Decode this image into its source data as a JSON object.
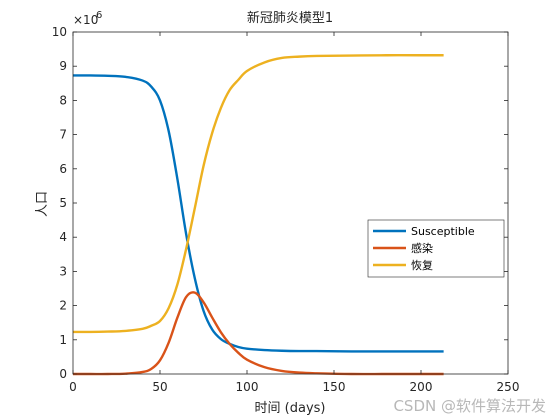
{
  "chart_data": {
    "type": "line",
    "title": "新冠肺炎模型1",
    "xlabel": "时间 (days)",
    "ylabel": "人口",
    "exponent_base": "×10",
    "exponent_power": "6",
    "xlim": [
      0,
      250
    ],
    "ylim": [
      0,
      10
    ],
    "xticks": [
      "0",
      "50",
      "100",
      "150",
      "200",
      "250"
    ],
    "yticks": [
      "0",
      "1",
      "2",
      "3",
      "4",
      "5",
      "6",
      "7",
      "8",
      "9",
      "10"
    ],
    "x": [
      0,
      10,
      20,
      30,
      40,
      45,
      50,
      55,
      60,
      65,
      70,
      75,
      80,
      85,
      90,
      95,
      100,
      110,
      120,
      130,
      140,
      160,
      180,
      200,
      213
    ],
    "series": [
      {
        "name": "Susceptible",
        "color": "#0072BD",
        "values": [
          8.73,
          8.73,
          8.72,
          8.69,
          8.58,
          8.4,
          8.0,
          7.1,
          5.7,
          4.1,
          2.8,
          1.85,
          1.3,
          1.02,
          0.88,
          0.79,
          0.74,
          0.7,
          0.68,
          0.67,
          0.67,
          0.66,
          0.66,
          0.66,
          0.66
        ]
      },
      {
        "name": "感染",
        "color": "#D95319",
        "values": [
          0.0,
          0.0,
          0.0,
          0.01,
          0.06,
          0.15,
          0.4,
          0.92,
          1.65,
          2.25,
          2.38,
          2.1,
          1.65,
          1.22,
          0.88,
          0.62,
          0.42,
          0.2,
          0.09,
          0.04,
          0.02,
          0.0,
          0.0,
          0.0,
          0.0
        ]
      },
      {
        "name": "恢复",
        "color": "#EDB120",
        "values": [
          1.23,
          1.23,
          1.24,
          1.26,
          1.32,
          1.41,
          1.55,
          1.93,
          2.62,
          3.65,
          4.85,
          6.08,
          7.05,
          7.78,
          8.3,
          8.6,
          8.86,
          9.11,
          9.24,
          9.28,
          9.3,
          9.31,
          9.32,
          9.32,
          9.32
        ]
      }
    ],
    "legend_position": "right-middle",
    "grid": false
  },
  "watermark": "CSDN @软件算法开发"
}
